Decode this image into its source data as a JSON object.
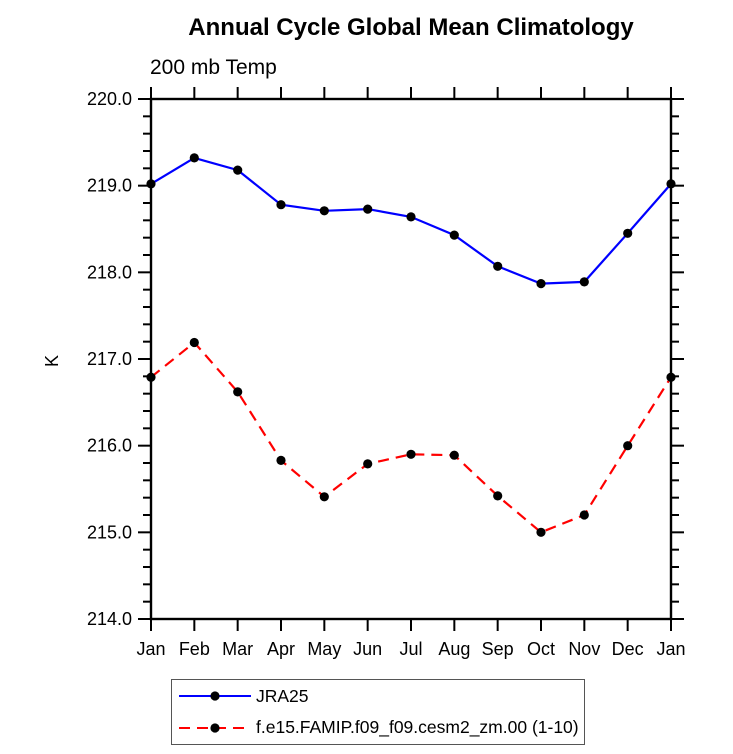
{
  "chart_data": {
    "type": "line",
    "title": "Annual Cycle Global Mean Climatology",
    "subtitle": "200 mb Temp",
    "ylabel": "K",
    "xlabel": "",
    "ylim": [
      214.0,
      220.0
    ],
    "ytick_major_interval": 1.0,
    "ytick_minor_interval": 0.2,
    "ytick_labels": [
      "220.0",
      "219.0",
      "218.0",
      "217.0",
      "216.0",
      "215.0",
      "214.0"
    ],
    "grid": false,
    "legend_position": "bottom",
    "axis_color": "#000000",
    "marker_color": "#000000",
    "categories": [
      "Jan",
      "Feb",
      "Mar",
      "Apr",
      "May",
      "Jun",
      "Jul",
      "Aug",
      "Sep",
      "Oct",
      "Nov",
      "Dec",
      "Jan"
    ],
    "series": [
      {
        "name": "JRA25",
        "color": "#0000ff",
        "line_style": "solid",
        "marker": "filled-circle",
        "values": [
          219.02,
          219.32,
          219.18,
          218.78,
          218.71,
          218.73,
          218.64,
          218.43,
          218.07,
          217.87,
          217.89,
          218.45,
          219.02
        ]
      },
      {
        "name": "f.e15.FAMIP.f09_f09.cesm2_zm.00 (1-10)",
        "color": "#ff0000",
        "line_style": "dashed",
        "marker": "filled-circle",
        "values": [
          216.79,
          217.19,
          216.62,
          215.83,
          215.41,
          215.79,
          215.9,
          215.89,
          215.42,
          215.0,
          215.2,
          216.0,
          216.79
        ]
      }
    ]
  }
}
